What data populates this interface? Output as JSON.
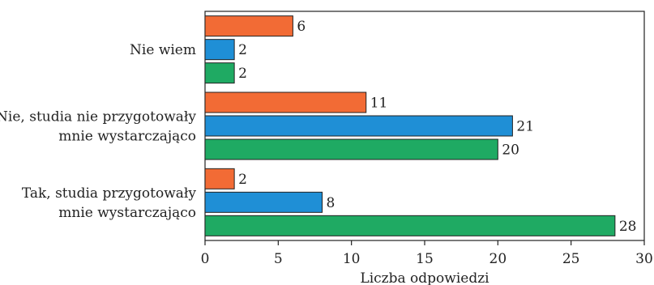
{
  "chart_data": {
    "type": "bar",
    "orientation": "horizontal",
    "categories": [
      [
        "Nie wiem"
      ],
      [
        "Nie, studia nie przygotowały",
        "mnie wystarczająco"
      ],
      [
        "Tak, studia przygotowały",
        "mnie wystarczająco"
      ]
    ],
    "series": [
      {
        "values": [
          6,
          11,
          2
        ],
        "color": "#f26b35"
      },
      {
        "values": [
          2,
          21,
          8
        ],
        "color": "#1f8fd6"
      },
      {
        "values": [
          2,
          20,
          28
        ],
        "color": "#1faa63"
      }
    ],
    "xlabel": "Liczba odpowiedzi",
    "ylabel": "",
    "xlim": [
      0,
      30
    ],
    "xticks": [
      0,
      5,
      10,
      15,
      20,
      25,
      30
    ],
    "grid": false,
    "legend": "none"
  }
}
